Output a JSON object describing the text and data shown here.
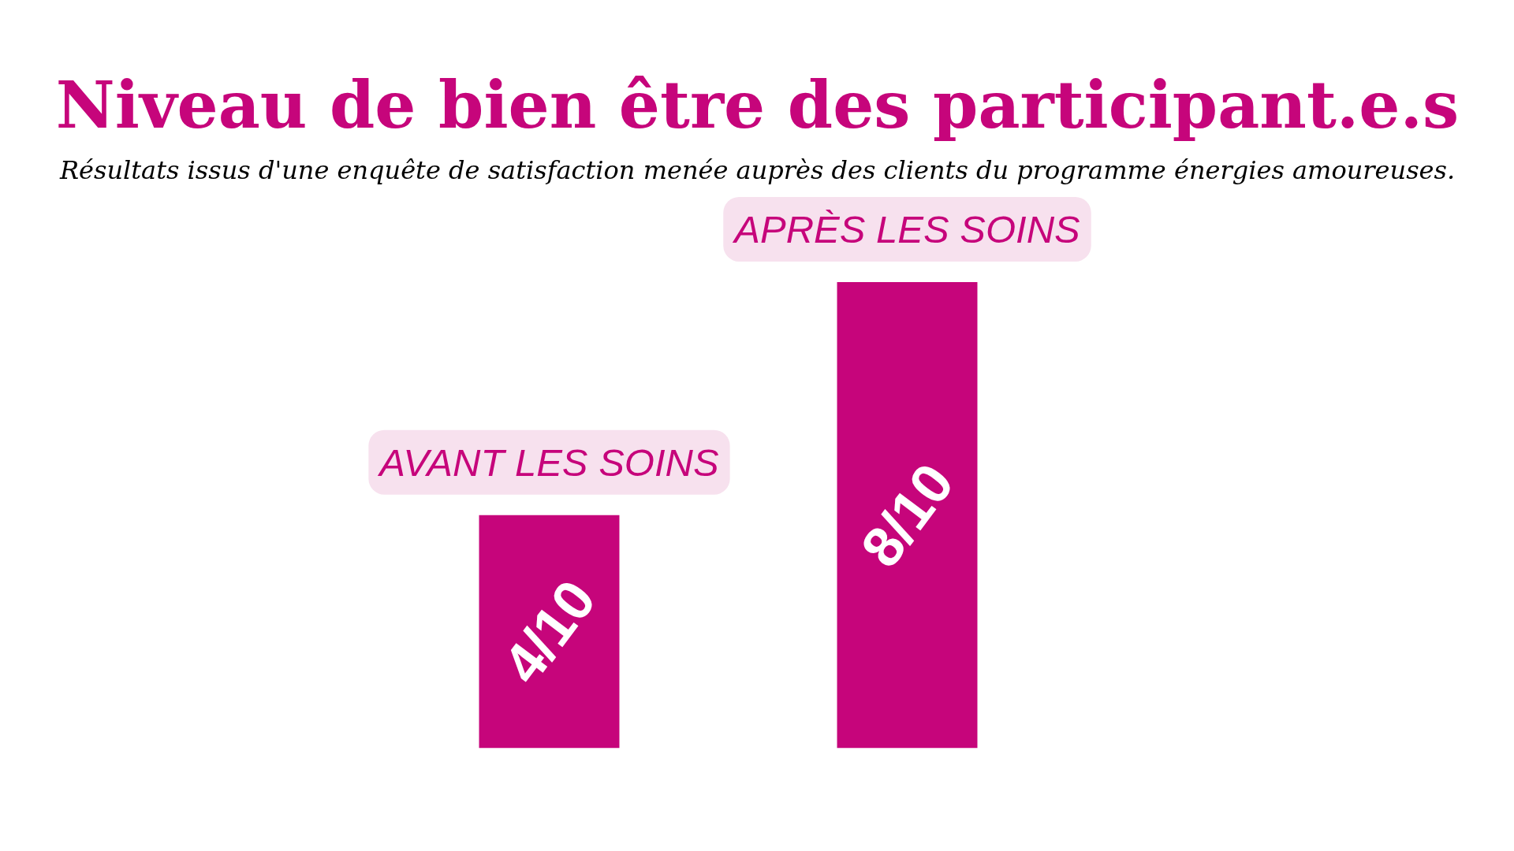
{
  "chart_data": {
    "type": "bar",
    "title": "Niveau de bien être des participant.e.s",
    "subtitle": "Résultats issus d'une enquête de satisfaction menée auprès des clients du programme énergies amoureuses.",
    "categories": [
      "AVANT LES SOINS",
      "APRÈS LES SOINS"
    ],
    "values": [
      0.4,
      0.8
    ],
    "value_labels": [
      "4/10",
      "8/10"
    ],
    "color": "#c6057b",
    "grid": false
  }
}
